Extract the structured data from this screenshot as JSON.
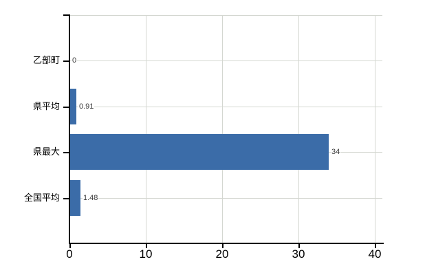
{
  "chart_data": {
    "type": "bar",
    "orientation": "horizontal",
    "title": "",
    "xlabel": "",
    "ylabel": "",
    "categories": [
      "乙部町",
      "県平均",
      "県最大",
      "全国平均"
    ],
    "values": [
      0,
      0.91,
      34,
      1.48
    ],
    "value_labels": [
      "0",
      "0.91",
      "34",
      "1.48"
    ],
    "x_tick_values": [
      0,
      10,
      20,
      30,
      40
    ],
    "x_tick_labels": [
      "0",
      "10",
      "20",
      "30",
      "40"
    ],
    "xlim": [
      0,
      40
    ],
    "grid": true,
    "legend": false,
    "colors": {
      "bar": "#3B6CA8",
      "axis": "#000000",
      "gridline": "#D4D7D1",
      "value_label": "#3A3A3A",
      "tick_label": "#000000",
      "background": "#FFFFFF"
    }
  }
}
